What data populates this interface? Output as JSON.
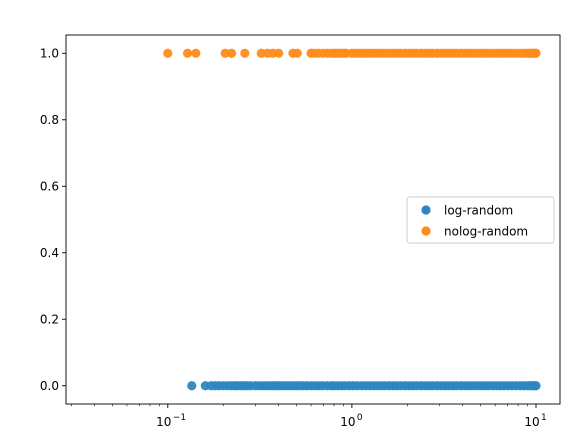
{
  "chart_data": {
    "type": "scatter",
    "title": "",
    "xlabel": "",
    "ylabel": "",
    "xscale": "log",
    "xlim": [
      0.028,
      13.5
    ],
    "ylim": [
      -0.055,
      1.055
    ],
    "grid": false,
    "legend_position": "center-right",
    "y_ticks": [
      {
        "value": 0.0,
        "label": "0.0"
      },
      {
        "value": 0.2,
        "label": "0.2"
      },
      {
        "value": 0.4,
        "label": "0.4"
      },
      {
        "value": 0.6,
        "label": "0.6"
      },
      {
        "value": 0.8,
        "label": "0.8"
      },
      {
        "value": 1.0,
        "label": "1.0"
      }
    ],
    "x_ticks": [
      {
        "value": 0.1,
        "base": "10",
        "exp": "−1"
      },
      {
        "value": 1,
        "base": "10",
        "exp": "0"
      },
      {
        "value": 10,
        "base": "10",
        "exp": "1"
      }
    ],
    "series": [
      {
        "name": "log-random",
        "color": "#2e86c1",
        "y": 0,
        "x": [
          0.135,
          0.16,
          0.172,
          0.181,
          0.19,
          0.2,
          0.211,
          0.222,
          0.232,
          0.24,
          0.25,
          0.26,
          0.27,
          0.282,
          0.3,
          0.315,
          0.33,
          0.345,
          0.36,
          0.375,
          0.39,
          0.405,
          0.42,
          0.44,
          0.46,
          0.48,
          0.5,
          0.52,
          0.545,
          0.57,
          0.6,
          0.63,
          0.66,
          0.69,
          0.73,
          0.77,
          0.8,
          0.84,
          0.88,
          0.92,
          0.97,
          1.02,
          1.07,
          1.13,
          1.19,
          1.25,
          1.31,
          1.38,
          1.45,
          1.52,
          1.6,
          1.68,
          1.76,
          1.85,
          1.95,
          2.05,
          2.15,
          2.26,
          2.38,
          2.5,
          2.62,
          2.75,
          2.9,
          3.05,
          3.2,
          3.36,
          3.53,
          3.7,
          3.9,
          4.1,
          4.3,
          4.52,
          4.75,
          5.0,
          5.25,
          5.5,
          5.8,
          6.1,
          6.4,
          6.7,
          7.05,
          7.4,
          7.8,
          8.2,
          8.6,
          9.0,
          9.3,
          9.55,
          9.8,
          10.0
        ]
      },
      {
        "name": "nolog-random",
        "color": "#ff8c1a",
        "y": 1,
        "x": [
          0.1,
          0.128,
          0.142,
          0.205,
          0.222,
          0.262,
          0.322,
          0.348,
          0.372,
          0.4,
          0.478,
          0.505,
          0.6,
          0.625,
          0.66,
          0.7,
          0.74,
          0.78,
          0.81,
          0.84,
          0.87,
          0.9,
          0.93,
          1.0,
          1.05,
          1.1,
          1.15,
          1.2,
          1.26,
          1.32,
          1.38,
          1.45,
          1.52,
          1.6,
          1.68,
          1.76,
          1.85,
          1.95,
          2.05,
          2.15,
          2.26,
          2.38,
          2.5,
          2.62,
          2.75,
          2.9,
          3.05,
          3.2,
          3.36,
          3.53,
          3.7,
          3.9,
          4.1,
          4.3,
          4.52,
          4.75,
          5.0,
          5.25,
          5.5,
          5.8,
          6.1,
          6.4,
          6.7,
          7.05,
          7.4,
          7.8,
          8.2,
          8.6,
          8.9,
          9.2,
          9.45,
          9.7,
          9.9,
          10.0
        ]
      }
    ]
  }
}
